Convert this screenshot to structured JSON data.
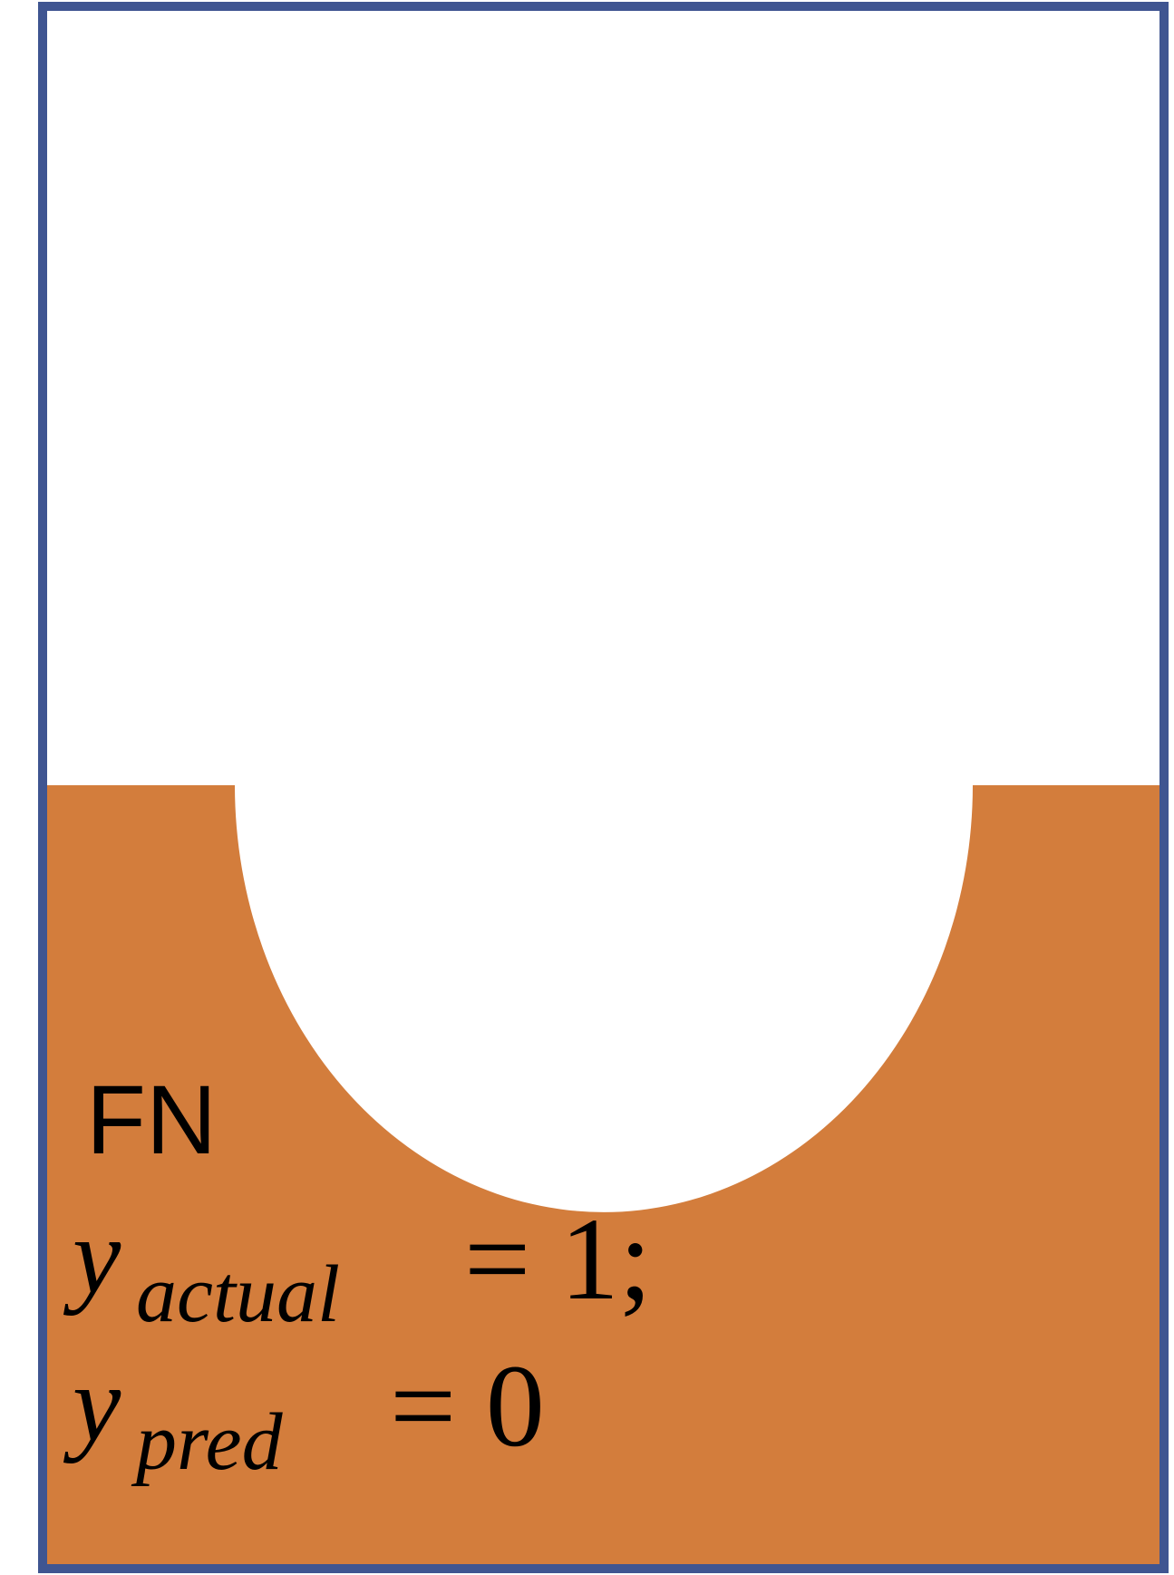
{
  "colors": {
    "frame": "#3F5591",
    "fill": "#D37D3C",
    "background": "#FFFFFF",
    "text": "#000000"
  },
  "label": "FN",
  "eq1": {
    "var": "y",
    "sub": "actual",
    "rhs": "= 1;"
  },
  "eq2": {
    "var": "y",
    "sub": "pred",
    "rhs": "= 0"
  }
}
